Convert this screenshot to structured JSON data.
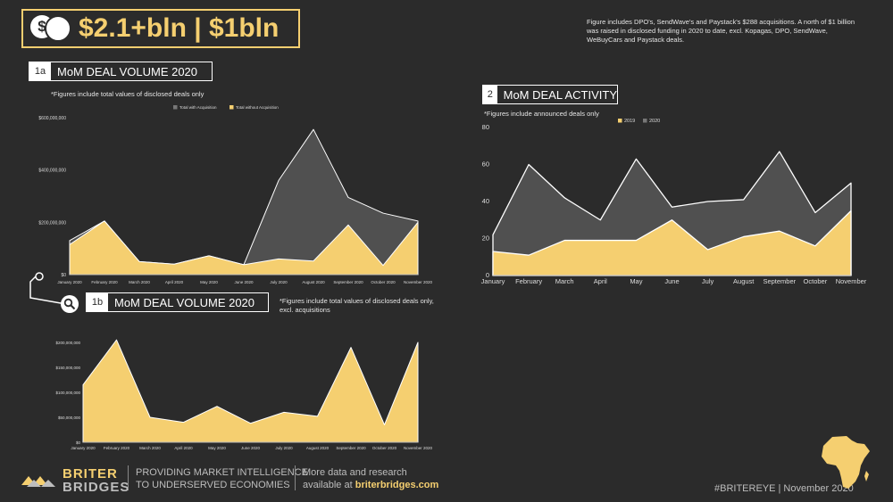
{
  "header": {
    "currency_symbol": "$",
    "headline": "$2.1+bln | $1bln",
    "note": "Figure includes DPO's, SendWave's and Paystack's $288 acquisitions. A north of $1 billion was raised in disclosed funding in 2020 to date, excl. Kopagas, DPO, SendWave, WeBuyCars and Paystack deals."
  },
  "section_1a": {
    "number": "1a",
    "title": "MoM DEAL VOLUME 2020",
    "note": "*Figures include total values of disclosed deals only"
  },
  "section_1b": {
    "number": "1b",
    "title": "MoM DEAL VOLUME 2020",
    "note": "*Figures include total values of disclosed deals only, excl. acquisitions"
  },
  "section_2": {
    "number": "2",
    "title": "MoM DEAL ACTIVITY",
    "note": "*Figures include announced deals only"
  },
  "footer": {
    "brand_line1": "BRITER",
    "brand_line2": "BRIDGES",
    "tagline_1": "PROVIDING MARKET INTELLIGENCE",
    "tagline_2": "TO UNDERSERVED ECONOMIES",
    "more_1": "More data and research",
    "more_2_prefix": "available at ",
    "more_2_link": "briterbridges.com",
    "hashtag": "#BRITEREYE | November 2020"
  },
  "colors": {
    "gold": "#f5cf70",
    "gray_area": "#505050",
    "background": "#2b2b2b"
  },
  "icons": {
    "coin": "coin-icon",
    "magnifier": "magnifier-icon",
    "africa": "africa-map-icon",
    "logo": "briter-bridges-logo-icon"
  },
  "chart_data": [
    {
      "id": "chart1a",
      "type": "area",
      "categories": [
        "January 2020",
        "February 2020",
        "March 2020",
        "April 2020",
        "May 2020",
        "June 2020",
        "July 2020",
        "August 2020",
        "September 2020",
        "October 2020",
        "November 2020"
      ],
      "series": [
        {
          "name": "Total with Acquisition",
          "color": "#505050",
          "values": [
            130000000,
            205000000,
            50000000,
            40000000,
            72000000,
            38000000,
            360000000,
            555000000,
            295000000,
            235000000,
            205000000
          ]
        },
        {
          "name": "Total without Acquisition",
          "color": "#f5cf70",
          "values": [
            115000000,
            205000000,
            50000000,
            40000000,
            72000000,
            38000000,
            60000000,
            52000000,
            190000000,
            35000000,
            200000000
          ]
        }
      ],
      "yticks": [
        {
          "v": 0,
          "label": "$0"
        },
        {
          "v": 200000000,
          "label": "$200,000,000"
        },
        {
          "v": 400000000,
          "label": "$400,000,000"
        },
        {
          "v": 600000000,
          "label": "$600,000,000"
        }
      ],
      "ylim": [
        0,
        600000000
      ],
      "legend": "top"
    },
    {
      "id": "chart1b",
      "type": "area",
      "categories": [
        "January 2020",
        "February 2020",
        "March 2020",
        "April 2020",
        "May 2020",
        "June 2020",
        "July 2020",
        "August 2020",
        "September 2020",
        "October 2020",
        "November 2020"
      ],
      "series": [
        {
          "name": "Total without Acquisition",
          "color": "#f5cf70",
          "values": [
            115000000,
            205000000,
            50000000,
            40000000,
            72000000,
            38000000,
            60000000,
            52000000,
            190000000,
            35000000,
            200000000
          ]
        }
      ],
      "yticks": [
        {
          "v": 0,
          "label": "$0"
        },
        {
          "v": 50000000,
          "label": "$50,000,000"
        },
        {
          "v": 100000000,
          "label": "$100,000,000"
        },
        {
          "v": 150000000,
          "label": "$150,000,000"
        },
        {
          "v": 200000000,
          "label": "$200,000,000"
        }
      ],
      "ylim": [
        0,
        200000000
      ]
    },
    {
      "id": "chart2",
      "type": "area",
      "categories": [
        "January",
        "February",
        "March",
        "April",
        "May",
        "June",
        "July",
        "August",
        "September",
        "October",
        "November"
      ],
      "series": [
        {
          "name": "2019",
          "color": "#f5cf70",
          "values": [
            13,
            11,
            19,
            19,
            19,
            30,
            14,
            21,
            24,
            16,
            35
          ]
        },
        {
          "name": "2020",
          "color": "#505050",
          "values": [
            22,
            60,
            42,
            30,
            63,
            37,
            40,
            41,
            67,
            34,
            50
          ]
        }
      ],
      "yticks": [
        {
          "v": 0,
          "label": "0"
        },
        {
          "v": 20,
          "label": "20"
        },
        {
          "v": 40,
          "label": "40"
        },
        {
          "v": 60,
          "label": "60"
        },
        {
          "v": 80,
          "label": "80"
        }
      ],
      "ylim": [
        0,
        80
      ],
      "legend": "top"
    }
  ]
}
